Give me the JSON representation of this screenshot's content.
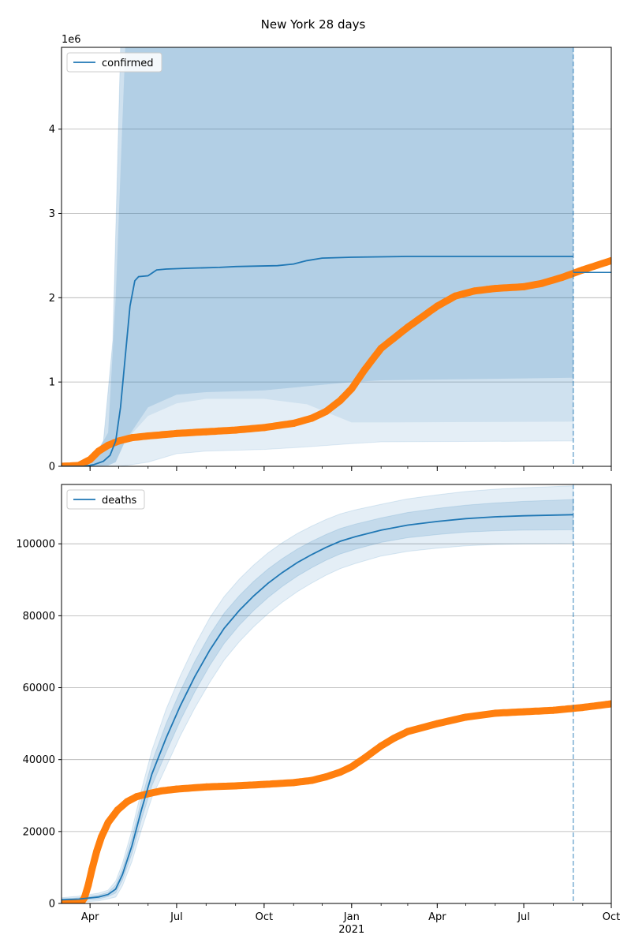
{
  "colors": {
    "model": "#1f77b4",
    "observed": "#ff7f0e",
    "band": "#1f77b4",
    "grid": "#b0b0b0",
    "forecast_line": "#1f77b4"
  },
  "chart_data": {
    "title": "New York 28 days",
    "type": "line",
    "x_axis": {
      "tick_labels": [
        "Apr",
        "Jul",
        "Oct",
        "Jan",
        "Apr",
        "Jul",
        "Oct"
      ],
      "tick_dates": [
        "2020-04-01",
        "2020-07-01",
        "2020-10-01",
        "2021-01-01",
        "2021-04-01",
        "2021-07-01",
        "2021-10-01"
      ],
      "year_label": "2021",
      "range": [
        "2020-03-02",
        "2021-10-01"
      ]
    },
    "forecast_date": "2021-08-22",
    "panels": [
      {
        "legend": "confirmed",
        "legend_position": "top-left",
        "offset_text": "1e6",
        "ylim": [
          0,
          4.97
        ],
        "yticks": [
          0,
          1,
          2,
          3,
          4
        ],
        "grid": "y",
        "model_median": [
          [
            "2020-03-02",
            0
          ],
          [
            "2020-03-25",
            0
          ],
          [
            "2020-04-05",
            0.02
          ],
          [
            "2020-04-15",
            0.06
          ],
          [
            "2020-04-22",
            0.13
          ],
          [
            "2020-04-28",
            0.3
          ],
          [
            "2020-05-03",
            0.7
          ],
          [
            "2020-05-08",
            1.3
          ],
          [
            "2020-05-13",
            1.9
          ],
          [
            "2020-05-18",
            2.2
          ],
          [
            "2020-05-22",
            2.25
          ],
          [
            "2020-06-01",
            2.26
          ],
          [
            "2020-06-10",
            2.33
          ],
          [
            "2020-06-20",
            2.34
          ],
          [
            "2020-07-15",
            2.35
          ],
          [
            "2020-08-15",
            2.36
          ],
          [
            "2020-09-01",
            2.37
          ],
          [
            "2020-10-15",
            2.38
          ],
          [
            "2020-11-01",
            2.4
          ],
          [
            "2020-11-15",
            2.44
          ],
          [
            "2020-12-01",
            2.47
          ],
          [
            "2021-01-01",
            2.48
          ],
          [
            "2021-03-01",
            2.49
          ],
          [
            "2021-08-22",
            2.49
          ]
        ],
        "band_outer": [
          [
            "2020-03-02",
            0,
            0
          ],
          [
            "2020-04-01",
            0,
            0.03
          ],
          [
            "2020-04-15",
            0,
            0.3
          ],
          [
            "2020-04-25",
            0,
            1.5
          ],
          [
            "2020-05-03",
            0,
            4.97
          ],
          [
            "2020-06-01",
            0.05,
            4.97
          ],
          [
            "2020-07-01",
            0.15,
            4.97
          ],
          [
            "2020-08-01",
            0.18,
            4.97
          ],
          [
            "2020-10-01",
            0.2,
            4.97
          ],
          [
            "2020-11-15",
            0.23,
            4.97
          ],
          [
            "2021-01-01",
            0.27,
            4.97
          ],
          [
            "2021-02-01",
            0.29,
            4.97
          ],
          [
            "2021-08-22",
            0.3,
            4.97
          ]
        ],
        "band_inner": [
          [
            "2020-03-02",
            0,
            0
          ],
          [
            "2020-04-01",
            0,
            0.02
          ],
          [
            "2020-04-20",
            0.01,
            0.4
          ],
          [
            "2020-04-28",
            0.05,
            2.0
          ],
          [
            "2020-05-08",
            0.3,
            4.97
          ],
          [
            "2020-06-01",
            0.7,
            4.97
          ],
          [
            "2020-07-01",
            0.85,
            4.97
          ],
          [
            "2020-08-01",
            0.88,
            4.97
          ],
          [
            "2020-10-01",
            0.9,
            4.97
          ],
          [
            "2020-11-15",
            0.95,
            4.97
          ],
          [
            "2021-01-01",
            1.0,
            4.97
          ],
          [
            "2021-02-01",
            1.02,
            4.97
          ],
          [
            "2021-08-22",
            1.05,
            4.97
          ]
        ],
        "band_mid_lower": [
          [
            "2020-05-15",
            0.45
          ],
          [
            "2020-06-15",
            0.72
          ],
          [
            "2020-08-01",
            0.8
          ],
          [
            "2020-11-01",
            0.8
          ],
          [
            "2021-01-01",
            0.52
          ],
          [
            "2021-02-01",
            0.52
          ],
          [
            "2021-08-22",
            0.53
          ]
        ],
        "observed": [
          [
            "2020-03-02",
            0
          ],
          [
            "2020-03-20",
            0.01
          ],
          [
            "2020-04-01",
            0.08
          ],
          [
            "2020-04-10",
            0.18
          ],
          [
            "2020-04-20",
            0.25
          ],
          [
            "2020-05-01",
            0.3
          ],
          [
            "2020-05-15",
            0.34
          ],
          [
            "2020-06-01",
            0.36
          ],
          [
            "2020-07-01",
            0.39
          ],
          [
            "2020-08-01",
            0.41
          ],
          [
            "2020-09-01",
            0.43
          ],
          [
            "2020-10-01",
            0.46
          ],
          [
            "2020-11-01",
            0.51
          ],
          [
            "2020-11-20",
            0.57
          ],
          [
            "2020-12-05",
            0.65
          ],
          [
            "2020-12-20",
            0.78
          ],
          [
            "2021-01-01",
            0.92
          ],
          [
            "2021-01-15",
            1.15
          ],
          [
            "2021-02-01",
            1.4
          ],
          [
            "2021-03-01",
            1.65
          ],
          [
            "2021-04-01",
            1.9
          ],
          [
            "2021-04-20",
            2.02
          ],
          [
            "2021-05-10",
            2.08
          ],
          [
            "2021-06-01",
            2.11
          ],
          [
            "2021-07-01",
            2.13
          ],
          [
            "2021-07-20",
            2.17
          ],
          [
            "2021-08-10",
            2.24
          ],
          [
            "2021-09-01",
            2.33
          ],
          [
            "2021-10-01",
            2.44
          ]
        ],
        "after_forecast_line": [
          [
            "2021-08-22",
            2.3
          ],
          [
            "2021-10-01",
            2.3
          ]
        ]
      },
      {
        "legend": "deaths",
        "legend_position": "top-left",
        "offset_text": "",
        "ylim": [
          0,
          116500
        ],
        "yticks": [
          0,
          20000,
          40000,
          60000,
          80000,
          100000
        ],
        "grid": "y",
        "model_median": [
          [
            "2020-03-02",
            1000
          ],
          [
            "2020-03-20",
            1200
          ],
          [
            "2020-04-10",
            1800
          ],
          [
            "2020-04-20",
            2500
          ],
          [
            "2020-04-28",
            4000
          ],
          [
            "2020-05-05",
            8000
          ],
          [
            "2020-05-15",
            16000
          ],
          [
            "2020-05-25",
            26000
          ],
          [
            "2020-06-05",
            36000
          ],
          [
            "2020-06-20",
            46000
          ],
          [
            "2020-07-05",
            55000
          ],
          [
            "2020-07-20",
            63000
          ],
          [
            "2020-08-05",
            70500
          ],
          [
            "2020-08-20",
            76500
          ],
          [
            "2020-09-05",
            81500
          ],
          [
            "2020-09-20",
            85500
          ],
          [
            "2020-10-05",
            89000
          ],
          [
            "2020-10-20",
            92000
          ],
          [
            "2020-11-05",
            94800
          ],
          [
            "2020-11-20",
            97000
          ],
          [
            "2020-12-05",
            99000
          ],
          [
            "2020-12-20",
            100700
          ],
          [
            "2021-01-05",
            102000
          ],
          [
            "2021-02-01",
            103800
          ],
          [
            "2021-03-01",
            105200
          ],
          [
            "2021-04-01",
            106200
          ],
          [
            "2021-05-01",
            107000
          ],
          [
            "2021-06-01",
            107500
          ],
          [
            "2021-07-01",
            107800
          ],
          [
            "2021-08-22",
            108100
          ]
        ],
        "model_outer_offset": [
          [
            "2020-03-02",
            600
          ],
          [
            "2020-04-20",
            1200
          ],
          [
            "2020-05-20",
            5000
          ],
          [
            "2020-06-20",
            8000
          ],
          [
            "2020-08-01",
            9000
          ],
          [
            "2020-10-01",
            8500
          ],
          [
            "2020-12-01",
            7800
          ],
          [
            "2021-02-01",
            7200
          ],
          [
            "2021-08-22",
            8000
          ]
        ],
        "model_inner_offset": [
          [
            "2020-03-02",
            300
          ],
          [
            "2020-04-20",
            600
          ],
          [
            "2020-05-20",
            2500
          ],
          [
            "2020-06-20",
            4000
          ],
          [
            "2020-08-01",
            4300
          ],
          [
            "2020-10-01",
            4000
          ],
          [
            "2020-12-01",
            3600
          ],
          [
            "2021-02-01",
            3400
          ],
          [
            "2021-08-22",
            4200
          ]
        ],
        "observed": [
          [
            "2020-03-02",
            0
          ],
          [
            "2020-03-22",
            0
          ],
          [
            "2020-03-26",
            1500
          ],
          [
            "2020-03-30",
            5000
          ],
          [
            "2020-04-03",
            9500
          ],
          [
            "2020-04-08",
            14500
          ],
          [
            "2020-04-13",
            18500
          ],
          [
            "2020-04-20",
            22500
          ],
          [
            "2020-04-30",
            26000
          ],
          [
            "2020-05-10",
            28300
          ],
          [
            "2020-05-20",
            29700
          ],
          [
            "2020-06-01",
            30500
          ],
          [
            "2020-06-15",
            31300
          ],
          [
            "2020-07-01",
            31800
          ],
          [
            "2020-08-01",
            32400
          ],
          [
            "2020-09-01",
            32700
          ],
          [
            "2020-10-01",
            33100
          ],
          [
            "2020-11-01",
            33600
          ],
          [
            "2020-11-20",
            34200
          ],
          [
            "2020-12-05",
            35200
          ],
          [
            "2020-12-20",
            36500
          ],
          [
            "2021-01-01",
            38000
          ],
          [
            "2021-01-15",
            40500
          ],
          [
            "2021-02-01",
            43800
          ],
          [
            "2021-02-15",
            46000
          ],
          [
            "2021-03-01",
            47800
          ],
          [
            "2021-04-01",
            50000
          ],
          [
            "2021-05-01",
            51800
          ],
          [
            "2021-06-01",
            52900
          ],
          [
            "2021-07-01",
            53300
          ],
          [
            "2021-08-01",
            53700
          ],
          [
            "2021-09-01",
            54500
          ],
          [
            "2021-10-01",
            55500
          ]
        ]
      }
    ]
  }
}
